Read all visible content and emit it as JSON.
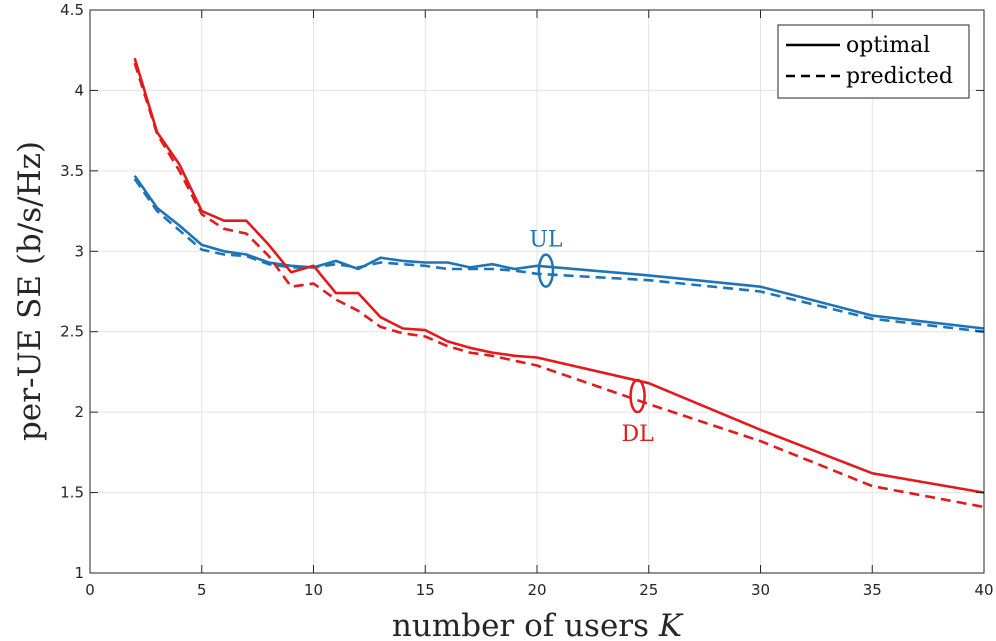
{
  "chart_data": {
    "type": "line",
    "xlabel": "number of users",
    "xlabel_var": "K",
    "ylabel": "per-UE SE (b/s/Hz)",
    "xlim": [
      0,
      40
    ],
    "ylim": [
      1,
      4.5
    ],
    "xticks": [
      0,
      5,
      10,
      15,
      20,
      25,
      30,
      35,
      40
    ],
    "yticks": [
      1,
      1.5,
      2,
      2.5,
      3,
      3.5,
      4,
      4.5
    ],
    "grid": true,
    "legend_position": "top-right",
    "legend": [
      {
        "label": "optimal",
        "style": "solid"
      },
      {
        "label": "predicted",
        "style": "dashed"
      }
    ],
    "colors": {
      "UL": "#1f74b8",
      "DL": "#e31a1c",
      "grid": "#e3e3e3",
      "axis": "#262626"
    },
    "series": [
      {
        "name": "UL optimal",
        "group": "UL",
        "style": "solid",
        "x": [
          2,
          3,
          4,
          5,
          6,
          7,
          8,
          9,
          10,
          11,
          12,
          13,
          14,
          15,
          16,
          17,
          18,
          19,
          20,
          25,
          30,
          35,
          40
        ],
        "y": [
          3.47,
          3.27,
          3.16,
          3.04,
          3.0,
          2.98,
          2.93,
          2.91,
          2.9,
          2.94,
          2.89,
          2.96,
          2.94,
          2.93,
          2.93,
          2.9,
          2.92,
          2.89,
          2.91,
          2.85,
          2.78,
          2.6,
          2.52
        ]
      },
      {
        "name": "UL predicted",
        "group": "UL",
        "style": "dashed",
        "x": [
          2,
          3,
          4,
          5,
          6,
          7,
          8,
          9,
          10,
          11,
          12,
          13,
          14,
          15,
          16,
          17,
          18,
          19,
          20,
          25,
          30,
          35,
          40
        ],
        "y": [
          3.45,
          3.25,
          3.13,
          3.01,
          2.98,
          2.97,
          2.92,
          2.9,
          2.9,
          2.92,
          2.9,
          2.93,
          2.92,
          2.91,
          2.89,
          2.89,
          2.89,
          2.88,
          2.86,
          2.82,
          2.75,
          2.58,
          2.5
        ]
      },
      {
        "name": "DL optimal",
        "group": "DL",
        "style": "solid",
        "x": [
          2,
          3,
          4,
          5,
          6,
          7,
          8,
          9,
          10,
          11,
          12,
          13,
          14,
          15,
          16,
          17,
          18,
          19,
          20,
          25,
          30,
          35,
          40
        ],
        "y": [
          4.2,
          3.74,
          3.54,
          3.25,
          3.19,
          3.19,
          3.04,
          2.87,
          2.91,
          2.74,
          2.74,
          2.59,
          2.52,
          2.51,
          2.44,
          2.4,
          2.37,
          2.35,
          2.34,
          2.18,
          1.89,
          1.62,
          1.5
        ]
      },
      {
        "name": "DL predicted",
        "group": "DL",
        "style": "dashed",
        "x": [
          2,
          3,
          4,
          5,
          6,
          7,
          8,
          9,
          10,
          11,
          12,
          13,
          14,
          15,
          16,
          17,
          18,
          19,
          20,
          25,
          30,
          35,
          40
        ],
        "y": [
          4.17,
          3.73,
          3.5,
          3.23,
          3.14,
          3.11,
          2.97,
          2.78,
          2.8,
          2.7,
          2.63,
          2.53,
          2.49,
          2.47,
          2.41,
          2.37,
          2.35,
          2.32,
          2.29,
          2.05,
          1.82,
          1.54,
          1.41
        ]
      }
    ],
    "annotations": [
      {
        "text": "UL",
        "group": "UL",
        "ellipse_at": [
          20.4,
          2.88
        ],
        "text_at": [
          20.4,
          3.03
        ]
      },
      {
        "text": "DL",
        "group": "DL",
        "ellipse_at": [
          24.5,
          2.1
        ],
        "text_at": [
          24.5,
          1.82
        ]
      }
    ]
  }
}
